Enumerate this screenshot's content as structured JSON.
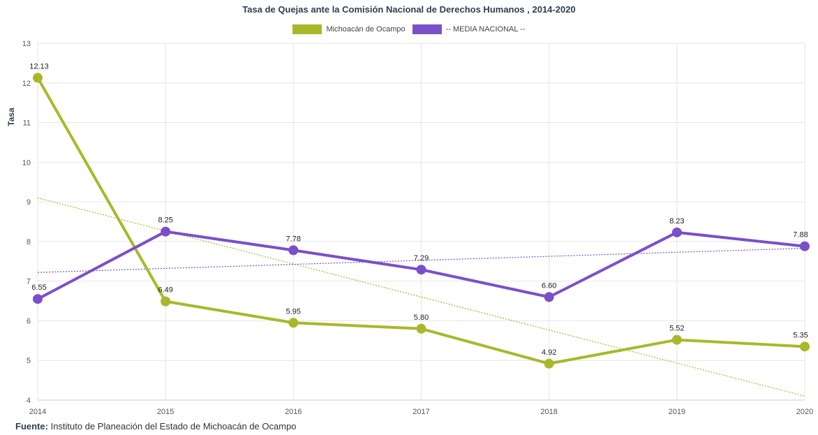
{
  "title": "Tasa de Quejas ante la Comisión Nacional de Derechos Humanos , 2014-2020",
  "source": {
    "label": "Fuente:",
    "text": "Instituto de Planeación del Estado de Michoacán de Ocampo"
  },
  "colors": {
    "michoacan": "#a9b82a",
    "nacional": "#7b4fc9",
    "grid": "#e6e6e6",
    "axis_text": "#555555"
  },
  "chart_data": {
    "type": "line",
    "title": "Tasa de Quejas ante la Comisión Nacional de Derechos Humanos , 2014-2020",
    "xlabel": "",
    "ylabel": "Tasa",
    "ylim": [
      4,
      13
    ],
    "yticks": [
      "4",
      "5",
      "6",
      "7",
      "8",
      "9",
      "10",
      "11",
      "12",
      "13"
    ],
    "categories": [
      "2014",
      "2015",
      "2016",
      "2017",
      "2018",
      "2019",
      "2020"
    ],
    "grid": true,
    "legend_position": "top-center",
    "series": [
      {
        "name": "Michoacán de Ocampo",
        "values": [
          12.13,
          6.49,
          5.95,
          5.8,
          4.92,
          5.52,
          5.35
        ],
        "labels": [
          "12.13",
          "6.49",
          "5.95",
          "5.80",
          "4.92",
          "5.52",
          "5.35"
        ]
      },
      {
        "name": "-- MEDIA NACIONAL --",
        "values": [
          6.55,
          8.25,
          7.78,
          7.29,
          6.6,
          8.23,
          7.88
        ],
        "labels": [
          "6.55",
          "8.25",
          "7.78",
          "7.29",
          "6.60",
          "8.23",
          "7.88"
        ]
      }
    ],
    "trendlines": [
      {
        "series": "Michoacán de Ocampo",
        "style": "dotted",
        "start": 9.1,
        "end": 4.1
      },
      {
        "series": "-- MEDIA NACIONAL --",
        "style": "dotted",
        "start": 7.22,
        "end": 7.83
      }
    ]
  }
}
